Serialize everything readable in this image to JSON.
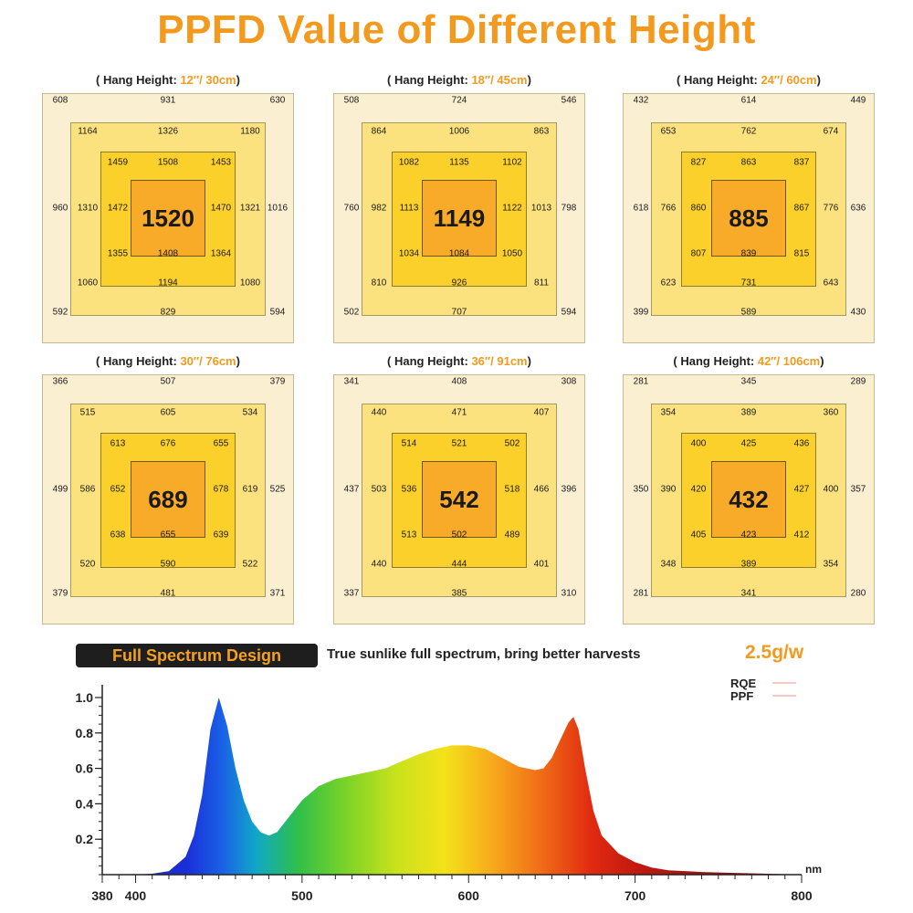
{
  "title": "PPFD Value of Different Height",
  "panels": [
    {
      "head_label": "( Hang Height: ",
      "head_value": "12″/ 30cm",
      "head_close": ")",
      "outer": {
        "tl": "608",
        "t": "931",
        "tr": "630",
        "l": "960",
        "r": "1016",
        "bl": "592",
        "b": "829",
        "br": "594"
      },
      "mid": {
        "tl": "1164",
        "t": "1326",
        "tr": "1180",
        "l": "1310",
        "r": "1321",
        "bl": "1060",
        "b": "1194",
        "br": "1080"
      },
      "inner": {
        "tl": "1459",
        "t": "1508",
        "tr": "1453",
        "l": "1472",
        "r": "1470",
        "bl": "1355",
        "b": "1408",
        "br": "1364"
      },
      "center": "1520"
    },
    {
      "head_label": "( Hang Height: ",
      "head_value": "18″/ 45cm",
      "head_close": ")",
      "outer": {
        "tl": "508",
        "t": "724",
        "tr": "546",
        "l": "760",
        "r": "798",
        "bl": "502",
        "b": "707",
        "br": "594"
      },
      "mid": {
        "tl": "864",
        "t": "1006",
        "tr": "863",
        "l": "982",
        "r": "1013",
        "bl": "810",
        "b": "926",
        "br": "811"
      },
      "inner": {
        "tl": "1082",
        "t": "1135",
        "tr": "1102",
        "l": "1113",
        "r": "1122",
        "bl": "1034",
        "b": "1084",
        "br": "1050"
      },
      "center": "1149"
    },
    {
      "head_label": "( Hang Height: ",
      "head_value": "24″/ 60cm",
      "head_close": ")",
      "outer": {
        "tl": "432",
        "t": "614",
        "tr": "449",
        "l": "618",
        "r": "636",
        "bl": "399",
        "b": "589",
        "br": "430"
      },
      "mid": {
        "tl": "653",
        "t": "762",
        "tr": "674",
        "l": "766",
        "r": "776",
        "bl": "623",
        "b": "731",
        "br": "643"
      },
      "inner": {
        "tl": "827",
        "t": "863",
        "tr": "837",
        "l": "860",
        "r": "867",
        "bl": "807",
        "b": "839",
        "br": "815"
      },
      "center": "885"
    },
    {
      "head_label": "( Hang Height: ",
      "head_value": "30″/ 76cm",
      "head_close": ")",
      "outer": {
        "tl": "366",
        "t": "507",
        "tr": "379",
        "l": "499",
        "r": "525",
        "bl": "379",
        "b": "481",
        "br": "371"
      },
      "mid": {
        "tl": "515",
        "t": "605",
        "tr": "534",
        "l": "586",
        "r": "619",
        "bl": "520",
        "b": "590",
        "br": "522"
      },
      "inner": {
        "tl": "613",
        "t": "676",
        "tr": "655",
        "l": "652",
        "r": "678",
        "bl": "638",
        "b": "655",
        "br": "639"
      },
      "center": "689"
    },
    {
      "head_label": "( Hang Height: ",
      "head_value": "36″/ 91cm",
      "head_close": ")",
      "outer": {
        "tl": "341",
        "t": "408",
        "tr": "308",
        "l": "437",
        "r": "396",
        "bl": "337",
        "b": "385",
        "br": "310"
      },
      "mid": {
        "tl": "440",
        "t": "471",
        "tr": "407",
        "l": "503",
        "r": "466",
        "bl": "440",
        "b": "444",
        "br": "401"
      },
      "inner": {
        "tl": "514",
        "t": "521",
        "tr": "502",
        "l": "536",
        "r": "518",
        "bl": "513",
        "b": "502",
        "br": "489"
      },
      "center": "542"
    },
    {
      "head_label": "( Hang Height: ",
      "head_value": "42″/ 106cm",
      "head_close": ")",
      "outer": {
        "tl": "281",
        "t": "345",
        "tr": "289",
        "l": "350",
        "r": "357",
        "bl": "281",
        "b": "341",
        "br": "280"
      },
      "mid": {
        "tl": "354",
        "t": "389",
        "tr": "360",
        "l": "390",
        "r": "400",
        "bl": "348",
        "b": "389",
        "br": "354"
      },
      "inner": {
        "tl": "400",
        "t": "425",
        "tr": "436",
        "l": "420",
        "r": "427",
        "bl": "405",
        "b": "423",
        "br": "412"
      },
      "center": "432"
    }
  ],
  "spectrum": {
    "banner": "Full Spectrum Design",
    "description": "True sunlike full spectrum, bring better harvests",
    "efficacy": "2.5g/w",
    "legend": [
      {
        "name": "RQE",
        "color": "#f5b7b0"
      },
      {
        "name": "PPF",
        "color": "#f5b7b0"
      }
    ],
    "x_unit": "nm"
  },
  "chart_data": {
    "type": "area",
    "xlabel": "nm",
    "ylabel": "",
    "xlim": [
      380,
      800
    ],
    "ylim": [
      0,
      1.0
    ],
    "x_ticks": [
      "380",
      "400",
      "500",
      "600",
      "700",
      "800"
    ],
    "y_ticks": [
      "0.2",
      "0.4",
      "0.6",
      "0.8",
      "1.0"
    ],
    "series": [
      {
        "name": "",
        "x": [
          380,
          400,
          410,
          420,
          430,
          435,
          440,
          445,
          450,
          455,
          460,
          465,
          470,
          475,
          480,
          485,
          490,
          500,
          510,
          520,
          530,
          540,
          550,
          560,
          570,
          580,
          590,
          600,
          610,
          620,
          630,
          640,
          645,
          650,
          655,
          660,
          663,
          666,
          670,
          675,
          680,
          690,
          700,
          710,
          720,
          740,
          760,
          780,
          800
        ],
        "y": [
          0,
          0,
          0.005,
          0.02,
          0.1,
          0.22,
          0.45,
          0.82,
          1.0,
          0.84,
          0.6,
          0.42,
          0.3,
          0.24,
          0.22,
          0.24,
          0.3,
          0.42,
          0.5,
          0.54,
          0.56,
          0.58,
          0.6,
          0.64,
          0.68,
          0.71,
          0.73,
          0.73,
          0.71,
          0.66,
          0.61,
          0.59,
          0.6,
          0.66,
          0.76,
          0.86,
          0.89,
          0.82,
          0.6,
          0.36,
          0.22,
          0.12,
          0.07,
          0.04,
          0.025,
          0.015,
          0.01,
          0.005,
          0
        ]
      }
    ]
  }
}
